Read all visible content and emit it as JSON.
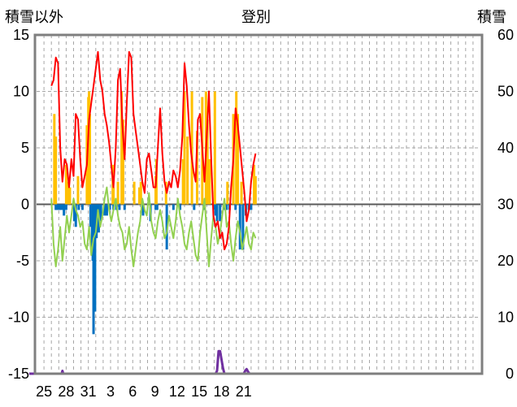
{
  "labels": {
    "left_axis_title": "積雪以外",
    "title": "登別",
    "right_axis_title": "積雪"
  },
  "colors": {
    "frame": "#7f7f7f",
    "grid": "#a6a6a6",
    "zero_line": "#595959",
    "temperature_max": "#ff0000",
    "temperature_min": "#92d050",
    "precipitation": "#ffc000",
    "snowfall_negative": "#0070c0",
    "snow_depth": "#7030a0"
  },
  "chart_data": {
    "type": "line",
    "title": "登別",
    "y_left": {
      "label": "積雪以外",
      "ylim": [
        -15,
        15
      ],
      "ticks": [
        15,
        10,
        5,
        0,
        -5,
        -10,
        -15
      ]
    },
    "y_right": {
      "label": "積雪",
      "ylim": [
        0,
        60
      ],
      "ticks": [
        60,
        50,
        40,
        30,
        20,
        10,
        0
      ]
    },
    "x": {
      "range": [
        0,
        60
      ],
      "tick_labels": [
        "25",
        "28",
        "31",
        "3",
        "6",
        "9",
        "12",
        "15",
        "18",
        "21"
      ],
      "tick_positions": [
        1,
        4,
        7,
        10,
        13,
        16,
        19,
        22,
        25,
        28
      ]
    },
    "grid": true,
    "series": [
      {
        "key": "max_temp",
        "axis": "left",
        "kind": "line",
        "x": [
          2.0,
          2.3,
          2.6,
          2.9,
          3.2,
          3.5,
          3.8,
          4.1,
          4.4,
          4.7,
          5.0,
          5.3,
          5.6,
          5.9,
          6.2,
          6.5,
          6.8,
          7.1,
          7.4,
          7.7,
          8.0,
          8.3,
          8.6,
          8.9,
          9.2,
          9.5,
          9.8,
          10.1,
          10.4,
          10.7,
          11.0,
          11.3,
          11.6,
          11.9,
          12.2,
          12.5,
          12.8,
          13.1,
          13.4,
          13.7,
          14.0,
          14.3,
          14.6,
          14.9,
          15.2,
          15.5,
          15.8,
          16.1,
          16.4,
          16.7,
          17.0,
          17.3,
          17.6,
          17.9,
          18.2,
          18.5,
          18.8,
          19.1,
          19.4,
          19.7,
          20.0,
          20.3,
          20.6,
          20.9,
          21.2,
          21.5,
          21.8,
          22.1,
          22.4,
          22.7,
          23.0,
          23.3,
          23.6,
          23.9,
          24.2,
          24.5,
          24.8,
          25.1,
          25.4,
          25.7,
          26.0,
          26.3,
          26.6,
          26.9,
          27.2,
          27.5,
          27.8,
          28.1,
          28.4,
          28.7,
          29.0,
          29.3,
          29.6
        ],
        "values": [
          10.5,
          11.0,
          13.0,
          12.5,
          5.0,
          2.0,
          4.0,
          3.5,
          1.5,
          4.0,
          2.5,
          8.0,
          7.5,
          4.0,
          1.5,
          2.5,
          3.5,
          7.5,
          9.0,
          10.5,
          12.0,
          13.5,
          11.0,
          10.0,
          8.0,
          7.0,
          5.5,
          3.5,
          1.5,
          5.0,
          11.0,
          12.0,
          7.0,
          4.0,
          9.0,
          13.5,
          13.0,
          8.0,
          6.5,
          5.0,
          3.5,
          2.0,
          1.0,
          4.0,
          4.5,
          3.0,
          1.5,
          1.5,
          5.0,
          8.5,
          4.5,
          2.0,
          1.0,
          2.0,
          1.5,
          3.0,
          2.5,
          1.5,
          3.0,
          6.0,
          12.5,
          10.5,
          7.0,
          4.5,
          3.0,
          2.0,
          7.5,
          8.0,
          5.0,
          2.0,
          6.0,
          10.0,
          4.0,
          -1.0,
          -2.0,
          -1.5,
          -3.0,
          -2.5,
          -4.0,
          -3.5,
          -2.0,
          1.5,
          4.0,
          8.5,
          7.0,
          5.0,
          3.0,
          1.0,
          -1.5,
          -0.5,
          2.0,
          3.5,
          4.5
        ]
      },
      {
        "key": "min_temp",
        "axis": "left",
        "kind": "line",
        "x": [
          2.0,
          2.3,
          2.6,
          2.9,
          3.2,
          3.5,
          3.8,
          4.1,
          4.4,
          4.7,
          5.0,
          5.3,
          5.6,
          5.9,
          6.2,
          6.5,
          6.8,
          7.1,
          7.4,
          7.7,
          8.0,
          8.3,
          8.6,
          8.9,
          9.2,
          9.5,
          9.8,
          10.1,
          10.4,
          10.7,
          11.0,
          11.3,
          11.6,
          11.9,
          12.2,
          12.5,
          12.8,
          13.1,
          13.4,
          13.7,
          14.0,
          14.3,
          14.6,
          14.9,
          15.2,
          15.5,
          15.8,
          16.1,
          16.4,
          16.7,
          17.0,
          17.3,
          17.6,
          17.9,
          18.2,
          18.5,
          18.8,
          19.1,
          19.4,
          19.7,
          20.0,
          20.3,
          20.6,
          20.9,
          21.2,
          21.5,
          21.8,
          22.1,
          22.4,
          22.7,
          23.0,
          23.3,
          23.6,
          23.9,
          24.2,
          24.5,
          24.8,
          25.1,
          25.4,
          25.7,
          26.0,
          26.3,
          26.6,
          26.9,
          27.2,
          27.5,
          27.8,
          28.1,
          28.4,
          28.7,
          29.0,
          29.3,
          29.6
        ],
        "values": [
          0.5,
          -3.5,
          -5.5,
          -4.0,
          -2.0,
          -5.0,
          -3.0,
          -1.0,
          -2.5,
          -1.0,
          0.5,
          -0.5,
          -1.0,
          -2.0,
          -1.5,
          -3.5,
          -4.0,
          -2.0,
          -4.5,
          -3.0,
          -2.5,
          -0.5,
          -2.0,
          -1.0,
          0.5,
          1.5,
          -0.5,
          -1.5,
          -0.5,
          0.5,
          -1.0,
          -2.0,
          -2.5,
          -4.0,
          -3.5,
          -2.0,
          -4.0,
          -5.5,
          -4.0,
          -2.5,
          -1.5,
          0.5,
          -0.5,
          -1.0,
          1.0,
          -1.5,
          -2.5,
          -3.0,
          -1.5,
          -0.5,
          -1.5,
          -3.0,
          -2.5,
          -1.0,
          -2.0,
          -3.0,
          -1.5,
          0.5,
          -1.0,
          -2.0,
          -3.5,
          -4.0,
          -2.5,
          -1.5,
          -3.0,
          -4.5,
          -5.0,
          -2.5,
          -1.0,
          0.5,
          -2.5,
          -5.5,
          -3.0,
          -1.0,
          -2.0,
          -3.5,
          -2.5,
          -1.0,
          0.5,
          -2.0,
          -1.5,
          -3.5,
          -5.0,
          -3.0,
          -1.5,
          -2.5,
          -4.0,
          -3.0,
          -2.0,
          -3.5,
          -4.0,
          -2.5,
          -3.0
        ]
      },
      {
        "key": "precipitation",
        "axis": "left",
        "kind": "bar",
        "x": [
          2.4,
          2.6,
          4.0,
          4.3,
          4.5,
          5.6,
          6.8,
          7.0,
          7.1,
          7.2,
          10.3,
          10.4,
          11.0,
          11.5,
          11.7,
          13.2,
          13.9,
          14.1,
          16.1,
          16.2,
          17.5,
          19.8,
          20.0,
          20.4,
          21.0,
          21.7,
          22.4,
          22.9,
          23.1,
          23.4,
          24.1,
          25.8,
          26.6,
          27.0,
          27.2,
          27.7,
          29.4,
          29.6
        ],
        "values": [
          8.0,
          6.0,
          3.5,
          2.0,
          1.5,
          2.5,
          7.0,
          9.5,
          10.0,
          8.0,
          3.5,
          1.5,
          2.0,
          10.0,
          7.5,
          2.0,
          1.5,
          2.0,
          2.5,
          4.0,
          2.0,
          4.0,
          10.0,
          6.0,
          10.0,
          6.5,
          9.5,
          10.0,
          7.5,
          4.0,
          10.0,
          2.0,
          8.0,
          10.0,
          8.0,
          2.0,
          3.5,
          2.5
        ]
      },
      {
        "key": "snowfall_negative",
        "axis": "left",
        "kind": "bar",
        "x": [
          2.6,
          2.8,
          3.1,
          3.3,
          3.5,
          3.7,
          4.0,
          5.1,
          5.3,
          5.7,
          6.2,
          7.3,
          7.5,
          7.6,
          7.7,
          7.8,
          7.9,
          8.1,
          8.4,
          8.7,
          9.2,
          9.5,
          9.9,
          10.4,
          10.8,
          11.2,
          11.9,
          14.4,
          15.4,
          16.1,
          16.3,
          17.6,
          18.5,
          19.4,
          21.3,
          22.6,
          24.0,
          24.2,
          24.4,
          24.8,
          25.3,
          25.7,
          26.1,
          26.9,
          27.5,
          27.9,
          28.3,
          28.7,
          29.0
        ],
        "values": [
          -0.5,
          -0.5,
          -0.5,
          -0.5,
          -0.5,
          -1.0,
          -0.5,
          -1.5,
          -2.0,
          -0.5,
          -0.5,
          -2.0,
          -4.5,
          -5.0,
          -11.5,
          -9.5,
          -9.5,
          -3.0,
          -2.5,
          -1.5,
          -1.0,
          -1.0,
          -0.5,
          -0.5,
          -0.5,
          -0.5,
          -0.5,
          -1.0,
          -1.5,
          -0.5,
          -0.5,
          -4.0,
          -0.5,
          -0.5,
          -0.5,
          -0.5,
          -0.5,
          -1.0,
          -1.5,
          -1.5,
          -0.5,
          -0.5,
          -0.5,
          -0.5,
          -4.0,
          -4.0,
          -1.0,
          -0.5,
          -0.5
        ]
      },
      {
        "key": "snow_depth",
        "axis": "right",
        "kind": "line",
        "x": [
          -1.0,
          2.0,
          3.4,
          3.5,
          3.6,
          4.0,
          24.0,
          24.2,
          24.4,
          24.6,
          24.8,
          25.0,
          25.2,
          25.4,
          25.6,
          28.0,
          28.2,
          28.4,
          28.6,
          28.8,
          29.7
        ],
        "values": [
          0,
          0,
          0,
          0.5,
          0,
          0,
          0,
          0,
          0.5,
          4.0,
          4.0,
          2.5,
          1.0,
          0,
          0,
          0,
          0.5,
          0.8,
          0.3,
          0,
          0
        ]
      }
    ]
  }
}
